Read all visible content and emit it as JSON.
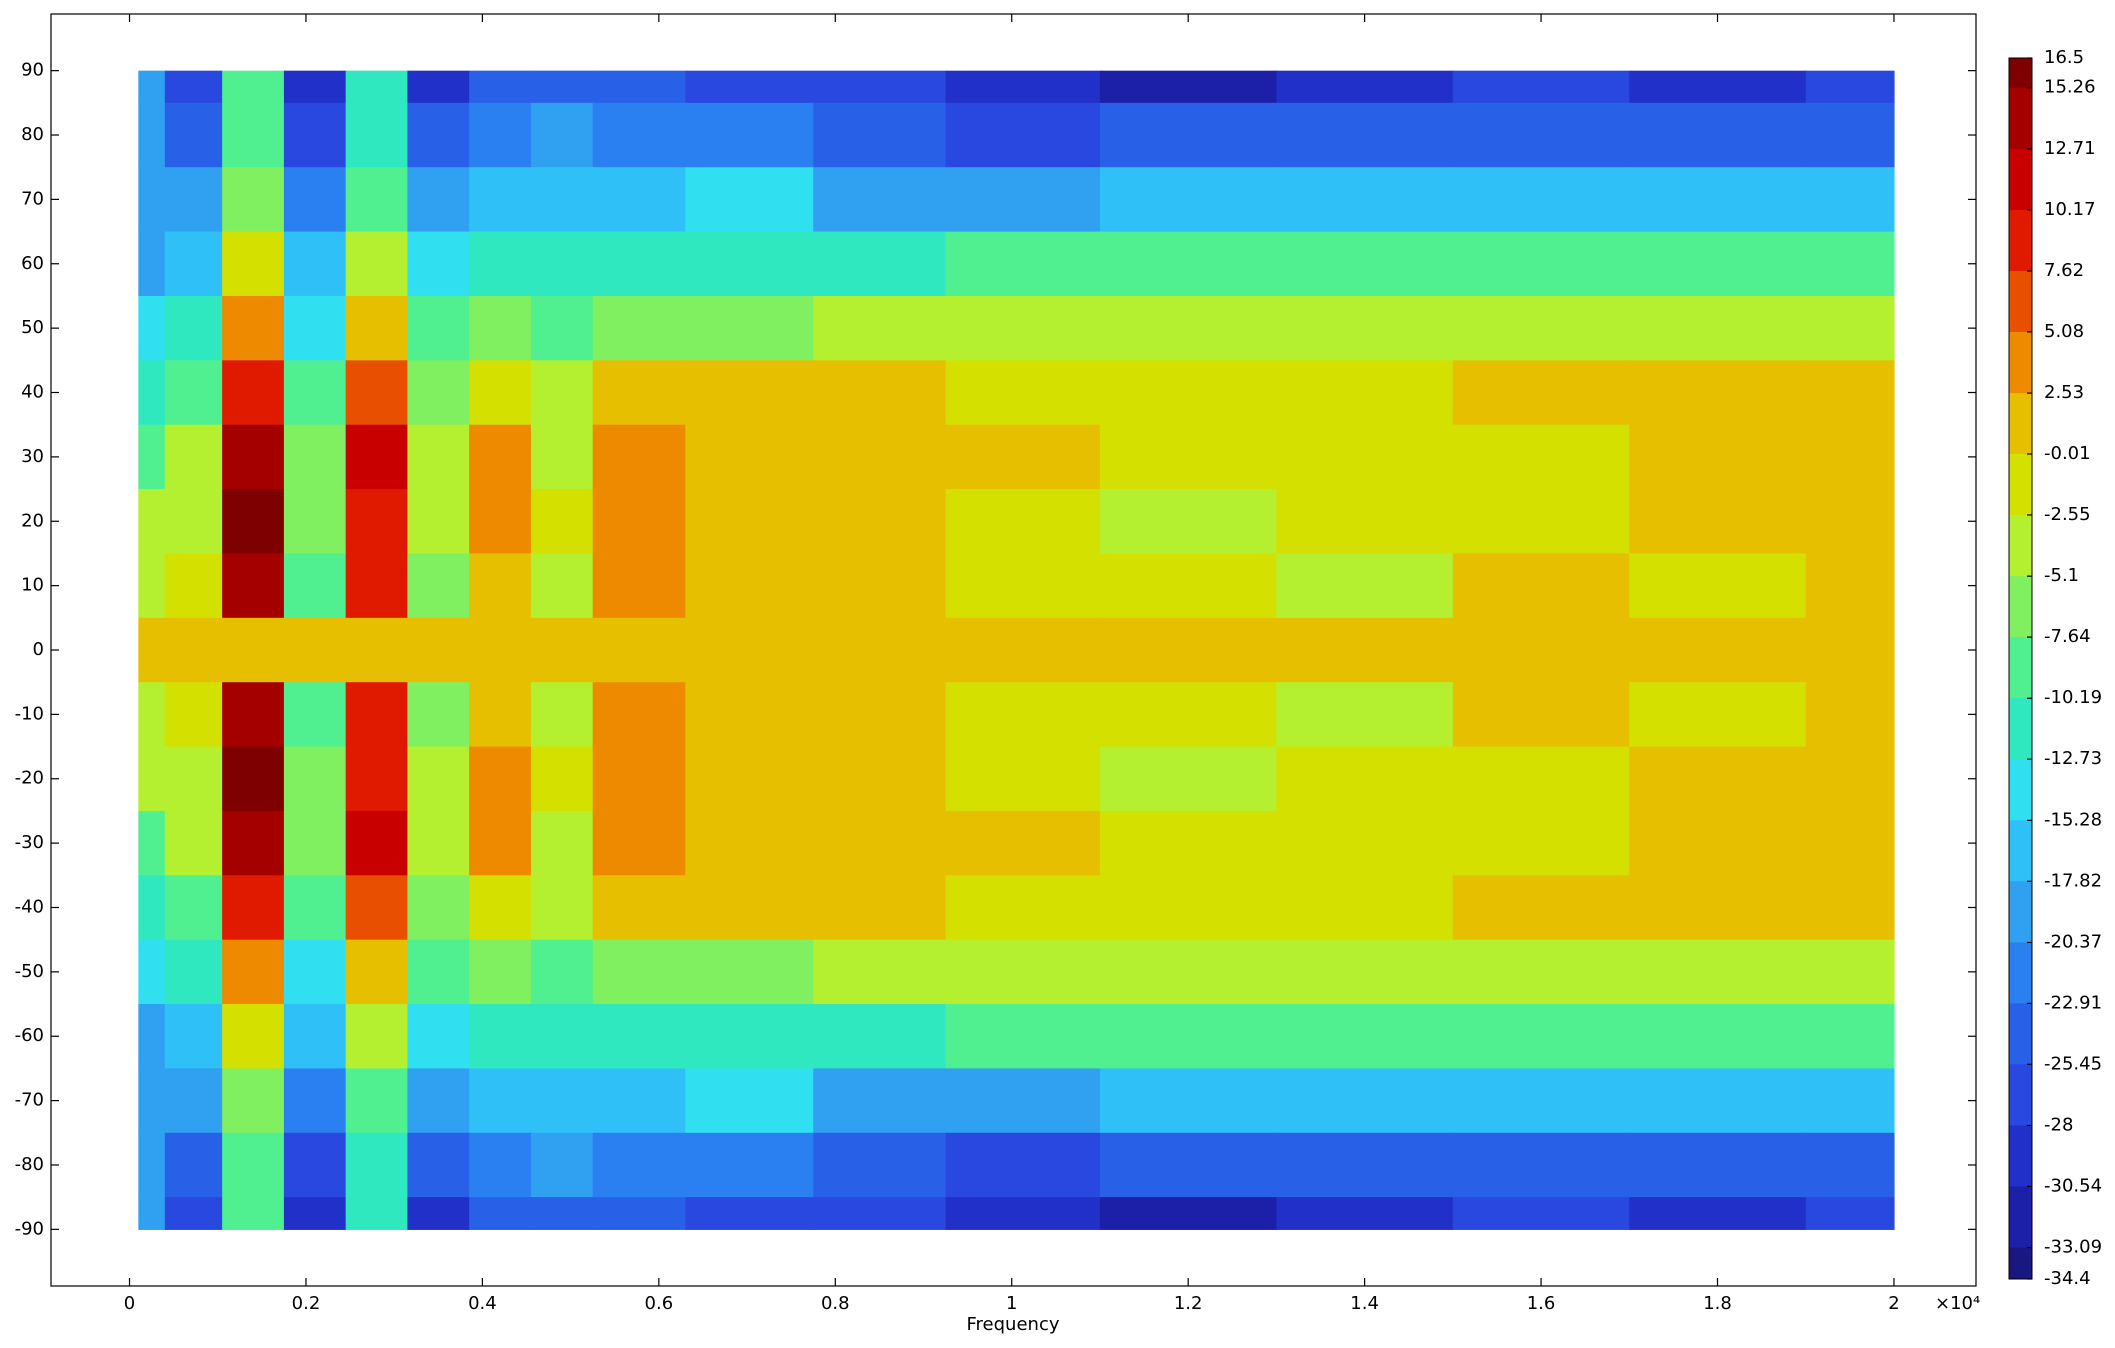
{
  "chart_data": {
    "type": "contour",
    "x_label": "Frequency",
    "x_axis_multiplier": "×10⁴",
    "xlim": [
      -0.089,
      2.093
    ],
    "ylim": [
      -98.8,
      98.8
    ],
    "xticks": [
      0,
      0.2,
      0.4,
      0.6,
      0.8,
      1,
      1.2,
      1.4,
      1.6,
      1.8,
      2
    ],
    "yticks": [
      90,
      80,
      70,
      60,
      50,
      40,
      30,
      20,
      10,
      0,
      -10,
      -20,
      -30,
      -40,
      -50,
      -60,
      -70,
      -80,
      -90
    ],
    "x": [
      0.01,
      0.07,
      0.14,
      0.21,
      0.28,
      0.35,
      0.42,
      0.49,
      0.56,
      0.7,
      0.85,
      1.0,
      1.2,
      1.4,
      1.6,
      1.8,
      2.0
    ],
    "y": [
      90,
      80,
      70,
      60,
      50,
      40,
      30,
      20,
      10,
      0,
      -10,
      -20,
      -30,
      -40,
      -50,
      -60,
      -70,
      -80,
      -90
    ],
    "z": [
      [
        -18,
        -26,
        -8,
        -29,
        -11,
        -29,
        -24,
        -23,
        -25,
        -27,
        -28,
        -29,
        -31,
        -30,
        -28,
        -29,
        -28
      ],
      [
        -20,
        -24,
        -10,
        -27,
        -12,
        -25,
        -22,
        -20,
        -21,
        -22,
        -25,
        -26,
        -24,
        -25,
        -24,
        -24,
        -23
      ],
      [
        -20,
        -20,
        -7,
        -22,
        -10,
        -19,
        -17,
        -16,
        -17,
        -15,
        -18,
        -18,
        -17,
        -16,
        -16,
        -17,
        -17
      ],
      [
        -18,
        -16,
        -2,
        -17,
        -5,
        -14,
        -12,
        -12,
        -11,
        -11,
        -11,
        -10,
        -10,
        -10,
        -10,
        -10,
        -10
      ],
      [
        -15,
        -12,
        3,
        -13,
        1,
        -10,
        -7,
        -8,
        -6,
        -6,
        -5,
        -5,
        -4,
        -5,
        -4,
        -4,
        -4
      ],
      [
        -12,
        -8,
        8,
        -10,
        7,
        -6,
        -1,
        -3,
        0,
        1,
        0,
        -1,
        -1,
        -2,
        1,
        1,
        1
      ],
      [
        -8,
        -5,
        13,
        -6,
        12,
        -4,
        4,
        -3,
        5,
        1,
        2,
        0,
        -1,
        -2,
        -1,
        1,
        1
      ],
      [
        -5,
        -3,
        16,
        -6,
        8,
        -4,
        3,
        -2,
        4,
        1,
        1,
        -1,
        -3,
        -2,
        -1,
        2,
        2
      ],
      [
        -3,
        -2,
        14,
        -9,
        10,
        -6,
        2,
        -4,
        3,
        1,
        1,
        -2,
        -1,
        -3,
        1,
        -2,
        1
      ],
      [
        1,
        1,
        1,
        1,
        1,
        1,
        1,
        1,
        1,
        1,
        1,
        1,
        1,
        1,
        1,
        1,
        1
      ],
      [
        -3,
        -2,
        14,
        -9,
        10,
        -6,
        2,
        -4,
        3,
        1,
        1,
        -2,
        -1,
        -3,
        1,
        -2,
        1
      ],
      [
        -5,
        -3,
        16,
        -6,
        8,
        -4,
        3,
        -2,
        4,
        1,
        1,
        -1,
        -3,
        -2,
        -1,
        2,
        2
      ],
      [
        -8,
        -5,
        13,
        -6,
        12,
        -4,
        4,
        -3,
        5,
        1,
        2,
        0,
        -1,
        -2,
        -1,
        1,
        1
      ],
      [
        -12,
        -8,
        8,
        -10,
        7,
        -6,
        -1,
        -3,
        0,
        1,
        0,
        -1,
        -1,
        -2,
        1,
        1,
        1
      ],
      [
        -15,
        -12,
        3,
        -13,
        1,
        -10,
        -7,
        -8,
        -6,
        -6,
        -5,
        -5,
        -4,
        -5,
        -4,
        -4,
        -4
      ],
      [
        -18,
        -16,
        -2,
        -17,
        -5,
        -14,
        -12,
        -12,
        -11,
        -11,
        -11,
        -10,
        -10,
        -10,
        -10,
        -10,
        -10
      ],
      [
        -20,
        -20,
        -7,
        -22,
        -10,
        -19,
        -17,
        -16,
        -17,
        -15,
        -18,
        -18,
        -17,
        -16,
        -16,
        -17,
        -17
      ],
      [
        -20,
        -24,
        -10,
        -27,
        -12,
        -25,
        -22,
        -20,
        -21,
        -22,
        -25,
        -26,
        -24,
        -25,
        -24,
        -24,
        -23
      ],
      [
        -18,
        -26,
        -8,
        -29,
        -11,
        -29,
        -24,
        -23,
        -25,
        -27,
        -28,
        -29,
        -31,
        -30,
        -28,
        -29,
        -28
      ]
    ],
    "levels": [
      16.5,
      15.26,
      12.71,
      10.17,
      7.62,
      5.08,
      2.53,
      -0.01,
      -2.55,
      -5.1,
      -7.64,
      -10.19,
      -12.73,
      -15.28,
      -17.82,
      -20.37,
      -22.91,
      -25.45,
      -28,
      -30.54,
      -33.09,
      -34.4
    ],
    "colors": [
      "#7f0000",
      "#a50000",
      "#c80000",
      "#e01a00",
      "#e85000",
      "#ee8a00",
      "#e6c000",
      "#d4e000",
      "#b4f030",
      "#80f060",
      "#50f090",
      "#30e8c0",
      "#30e0f0",
      "#30c0f8",
      "#30a0f0",
      "#2a80f0",
      "#2860e8",
      "#2848e0",
      "#2030c8",
      "#1c20a8",
      "#181880"
    ]
  }
}
